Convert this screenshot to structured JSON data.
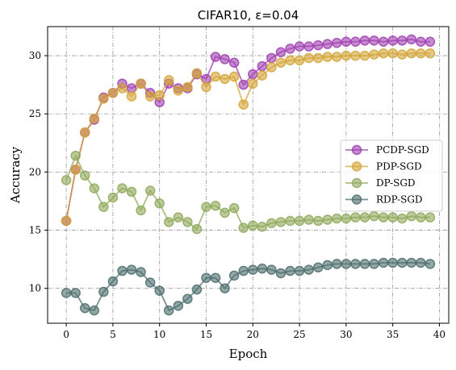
{
  "chart_data": {
    "type": "line",
    "title": "CIFAR10, ε=0.04",
    "xlabel": "Epoch",
    "ylabel": "Accuracy",
    "xlim": [
      -2,
      41
    ],
    "ylim": [
      7,
      32.5
    ],
    "xticks": [
      0,
      5,
      10,
      15,
      20,
      25,
      30,
      35,
      40
    ],
    "yticks": [
      10,
      15,
      20,
      25,
      30
    ],
    "grid": true,
    "legend_position": "center-right",
    "x": [
      0,
      1,
      2,
      3,
      4,
      5,
      6,
      7,
      8,
      9,
      10,
      11,
      12,
      13,
      14,
      15,
      16,
      17,
      18,
      19,
      20,
      21,
      22,
      23,
      24,
      25,
      26,
      27,
      28,
      29,
      30,
      31,
      32,
      33,
      34,
      35,
      36,
      37,
      38,
      39
    ],
    "series": [
      {
        "name": "PCDP-SGD",
        "color": "#a040b0",
        "values": [
          15.8,
          20.2,
          23.4,
          24.5,
          26.4,
          26.8,
          27.6,
          27.2,
          27.6,
          26.8,
          26.0,
          27.6,
          27.2,
          27.2,
          28.4,
          28.0,
          29.9,
          29.7,
          29.4,
          27.5,
          28.4,
          29.1,
          29.8,
          30.3,
          30.6,
          30.8,
          30.8,
          30.9,
          31.0,
          31.1,
          31.2,
          31.2,
          31.3,
          31.3,
          31.2,
          31.3,
          31.3,
          31.4,
          31.2,
          31.2
        ]
      },
      {
        "name": "PDP-SGD",
        "color": "#d4a537",
        "values": [
          15.8,
          20.2,
          23.4,
          24.6,
          26.3,
          26.8,
          27.2,
          26.5,
          27.6,
          26.5,
          26.6,
          27.9,
          27.0,
          27.3,
          28.5,
          27.3,
          28.2,
          28.0,
          28.2,
          25.8,
          27.6,
          28.3,
          29.0,
          29.4,
          29.6,
          29.6,
          29.8,
          29.8,
          29.9,
          29.9,
          30.0,
          30.0,
          30.0,
          30.1,
          30.2,
          30.2,
          30.1,
          30.2,
          30.2,
          30.2
        ]
      },
      {
        "name": "DP-SGD",
        "color": "#8fa95a",
        "values": [
          19.3,
          21.4,
          19.7,
          18.6,
          17.0,
          17.8,
          18.6,
          18.3,
          16.7,
          18.4,
          17.3,
          15.7,
          16.1,
          15.7,
          15.1,
          17.0,
          17.1,
          16.5,
          16.9,
          15.2,
          15.4,
          15.3,
          15.6,
          15.7,
          15.8,
          15.8,
          15.9,
          15.8,
          15.9,
          16.0,
          16.0,
          16.1,
          16.1,
          16.2,
          16.1,
          16.1,
          16.0,
          16.2,
          16.1,
          16.1
        ]
      },
      {
        "name": "RDP-SGD",
        "color": "#4c6c6c",
        "values": [
          9.6,
          9.6,
          8.3,
          8.1,
          9.7,
          10.6,
          11.5,
          11.6,
          11.4,
          10.5,
          9.8,
          8.1,
          8.5,
          9.1,
          9.9,
          10.9,
          10.9,
          10.0,
          11.1,
          11.5,
          11.6,
          11.7,
          11.6,
          11.3,
          11.5,
          11.5,
          11.6,
          11.8,
          12.0,
          12.1,
          12.1,
          12.1,
          12.1,
          12.1,
          12.2,
          12.2,
          12.2,
          12.2,
          12.2,
          12.1
        ]
      }
    ]
  }
}
